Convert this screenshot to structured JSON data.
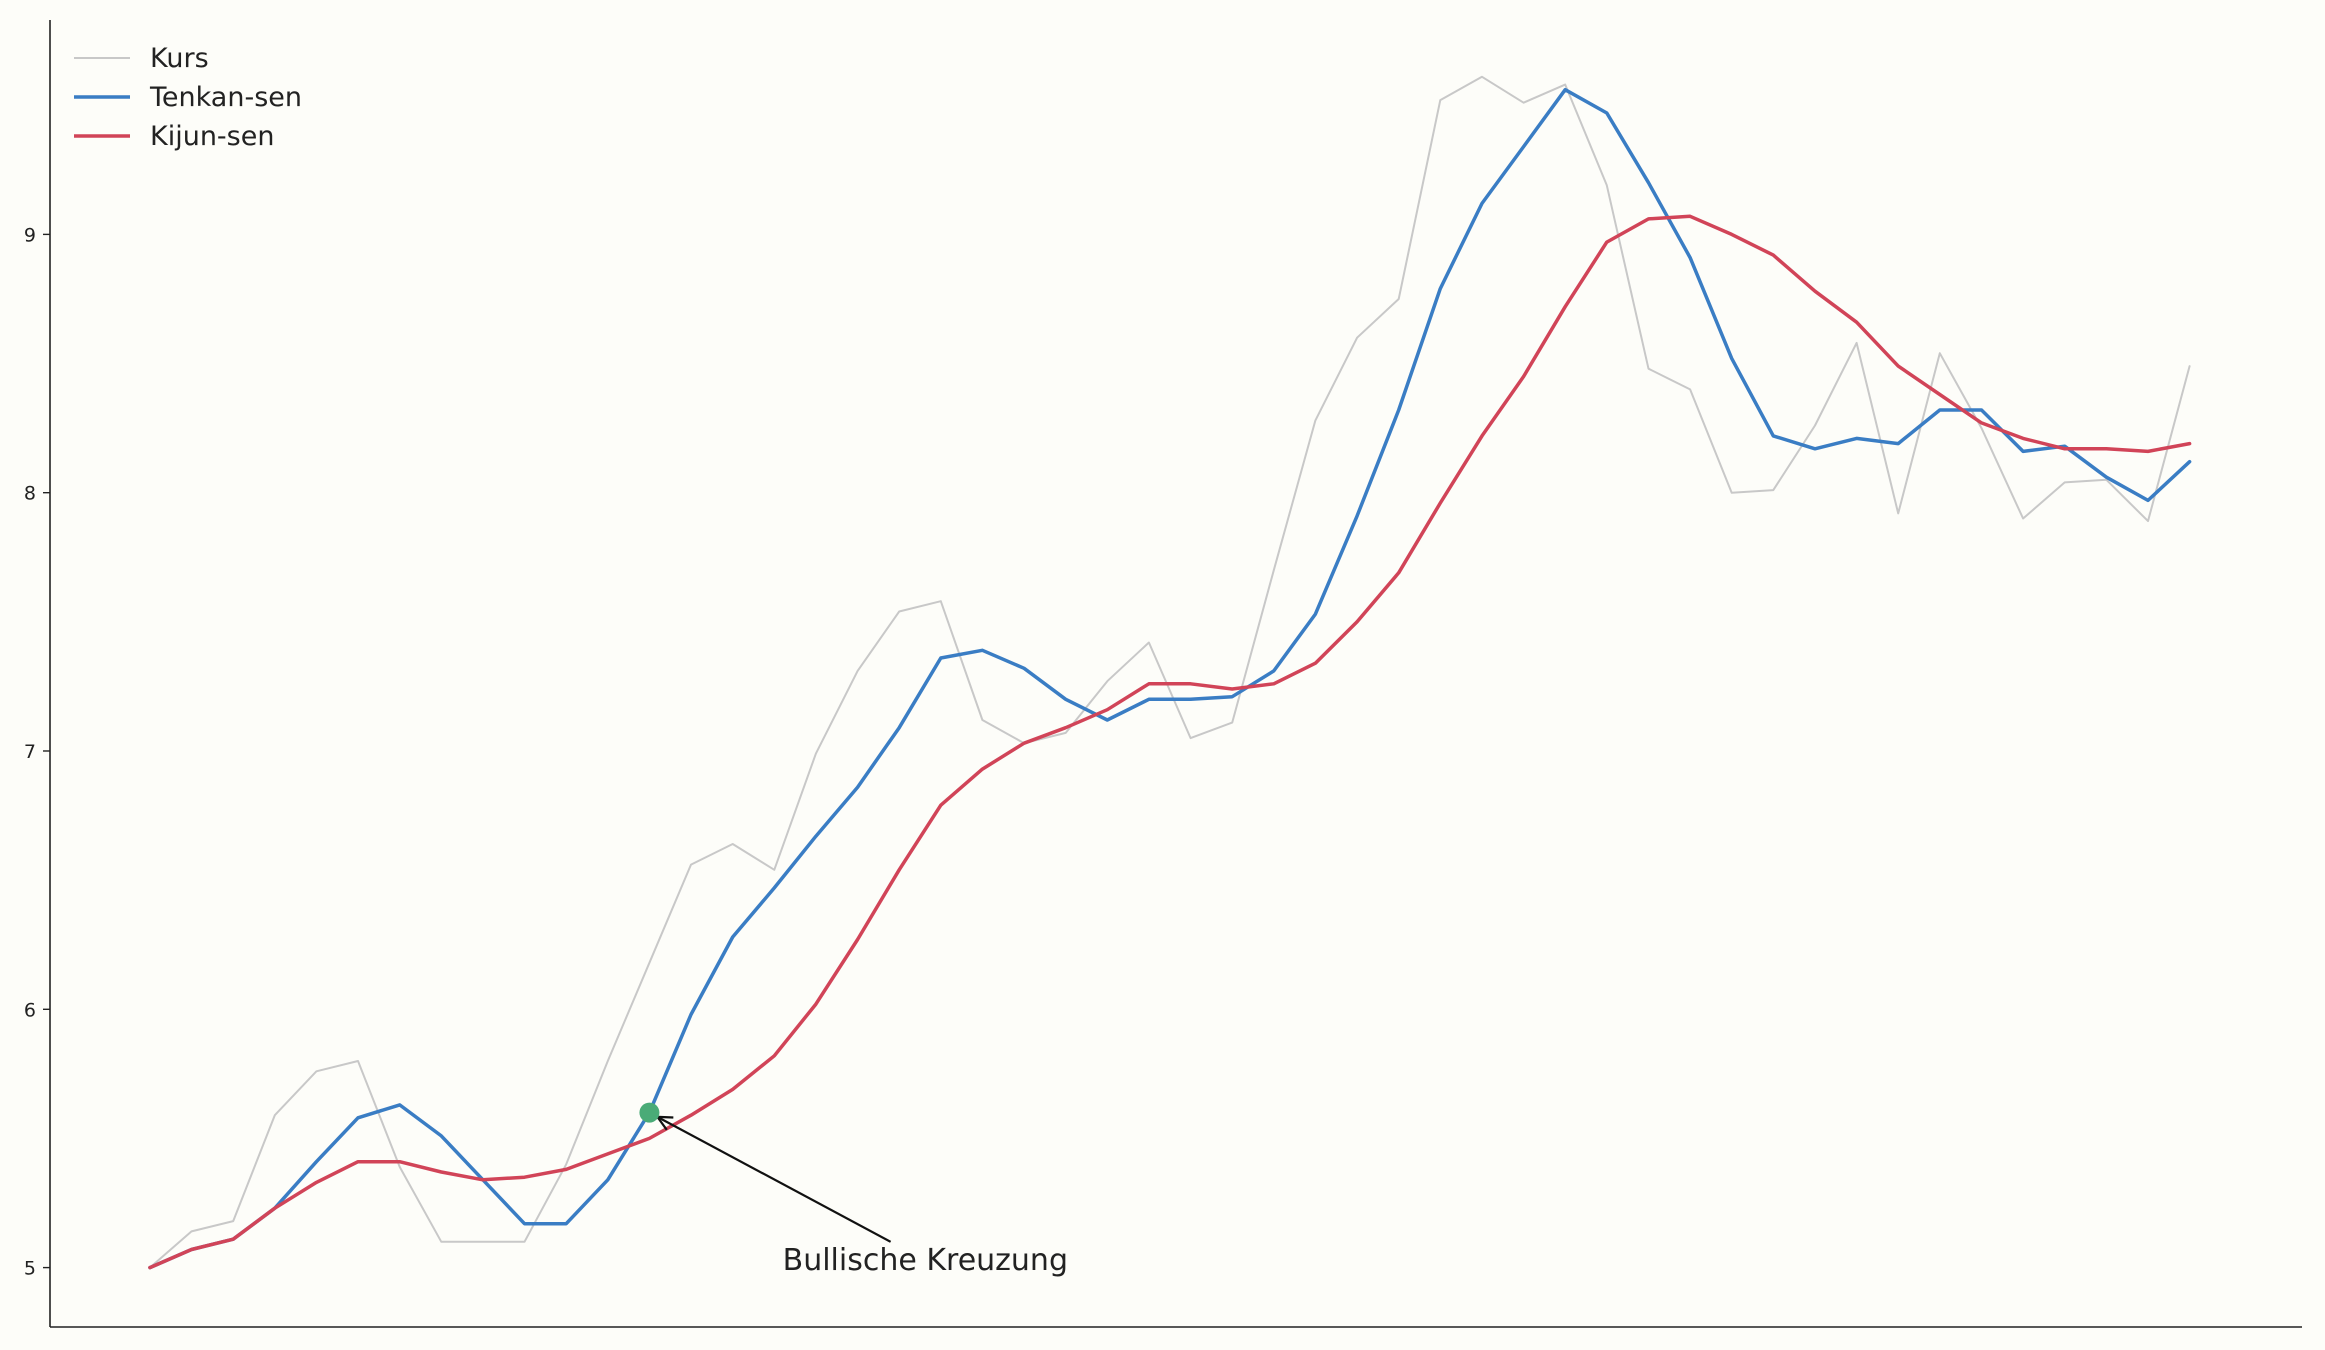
{
  "chart_data": {
    "type": "line",
    "title": "",
    "xlabel": "",
    "ylabel": "",
    "x": [
      0,
      1,
      2,
      3,
      4,
      5,
      6,
      7,
      8,
      9,
      10,
      11,
      12,
      13,
      14,
      15,
      16,
      17,
      18,
      19,
      20,
      21,
      22,
      23,
      24,
      25,
      26,
      27,
      28,
      29,
      30,
      31,
      32,
      33,
      34,
      35,
      36,
      37,
      38,
      39,
      40,
      41,
      42,
      43,
      44,
      45,
      46,
      47,
      48,
      49
    ],
    "xlim": [
      -2.4,
      51.7
    ],
    "ylim": [
      4.77,
      9.83
    ],
    "yticks": [
      5,
      6,
      7,
      8,
      9
    ],
    "xticks_visible": false,
    "grid": false,
    "legend_position": "top-left",
    "series": [
      {
        "name": "Kurs",
        "color": "#c8c8c8",
        "width": 2,
        "values": [
          5.0,
          5.14,
          5.18,
          5.59,
          5.76,
          5.8,
          5.39,
          5.1,
          5.1,
          5.1,
          5.4,
          5.8,
          6.18,
          6.56,
          6.64,
          6.54,
          6.99,
          7.31,
          7.54,
          7.58,
          7.12,
          7.03,
          7.07,
          7.27,
          7.42,
          7.05,
          7.11,
          7.7,
          8.28,
          8.6,
          8.75,
          9.52,
          9.61,
          9.51,
          9.58,
          9.19,
          8.48,
          8.4,
          8.0,
          8.01,
          8.26,
          8.58,
          7.92,
          8.54,
          8.25,
          7.9,
          8.04,
          8.05,
          7.89,
          8.49
        ]
      },
      {
        "name": "Tenkan-sen",
        "color": "#3a7dc4",
        "width": 3.5,
        "values": [
          5.0,
          5.07,
          5.11,
          5.23,
          5.41,
          5.58,
          5.63,
          5.51,
          5.34,
          5.17,
          5.17,
          5.34,
          5.6,
          5.98,
          6.28,
          6.47,
          6.67,
          6.86,
          7.09,
          7.36,
          7.39,
          7.32,
          7.2,
          7.12,
          7.2,
          7.2,
          7.21,
          7.31,
          7.53,
          7.91,
          8.32,
          8.79,
          9.12,
          9.34,
          9.56,
          9.47,
          9.2,
          8.91,
          8.52,
          8.22,
          8.17,
          8.21,
          8.19,
          8.32,
          8.32,
          8.16,
          8.18,
          8.06,
          7.97,
          8.12
        ]
      },
      {
        "name": "Kijun-sen",
        "color": "#d14458",
        "width": 3.5,
        "values": [
          5.0,
          5.07,
          5.11,
          5.23,
          5.33,
          5.41,
          5.41,
          5.37,
          5.34,
          5.35,
          5.38,
          5.44,
          5.5,
          5.59,
          5.69,
          5.82,
          6.02,
          6.27,
          6.54,
          6.79,
          6.93,
          7.03,
          7.09,
          7.16,
          7.26,
          7.26,
          7.24,
          7.26,
          7.34,
          7.5,
          7.69,
          7.96,
          8.22,
          8.45,
          8.72,
          8.97,
          9.06,
          9.07,
          9.0,
          8.92,
          8.78,
          8.66,
          8.49,
          8.38,
          8.27,
          8.21,
          8.17,
          8.17,
          8.16,
          8.19
        ]
      }
    ],
    "annotation": {
      "text": "Bullische Kreuzung",
      "point": {
        "x": 12,
        "y": 5.6
      },
      "text_at": {
        "x": 15.2,
        "y": 5.03
      },
      "marker_color": "#4aab77"
    }
  }
}
